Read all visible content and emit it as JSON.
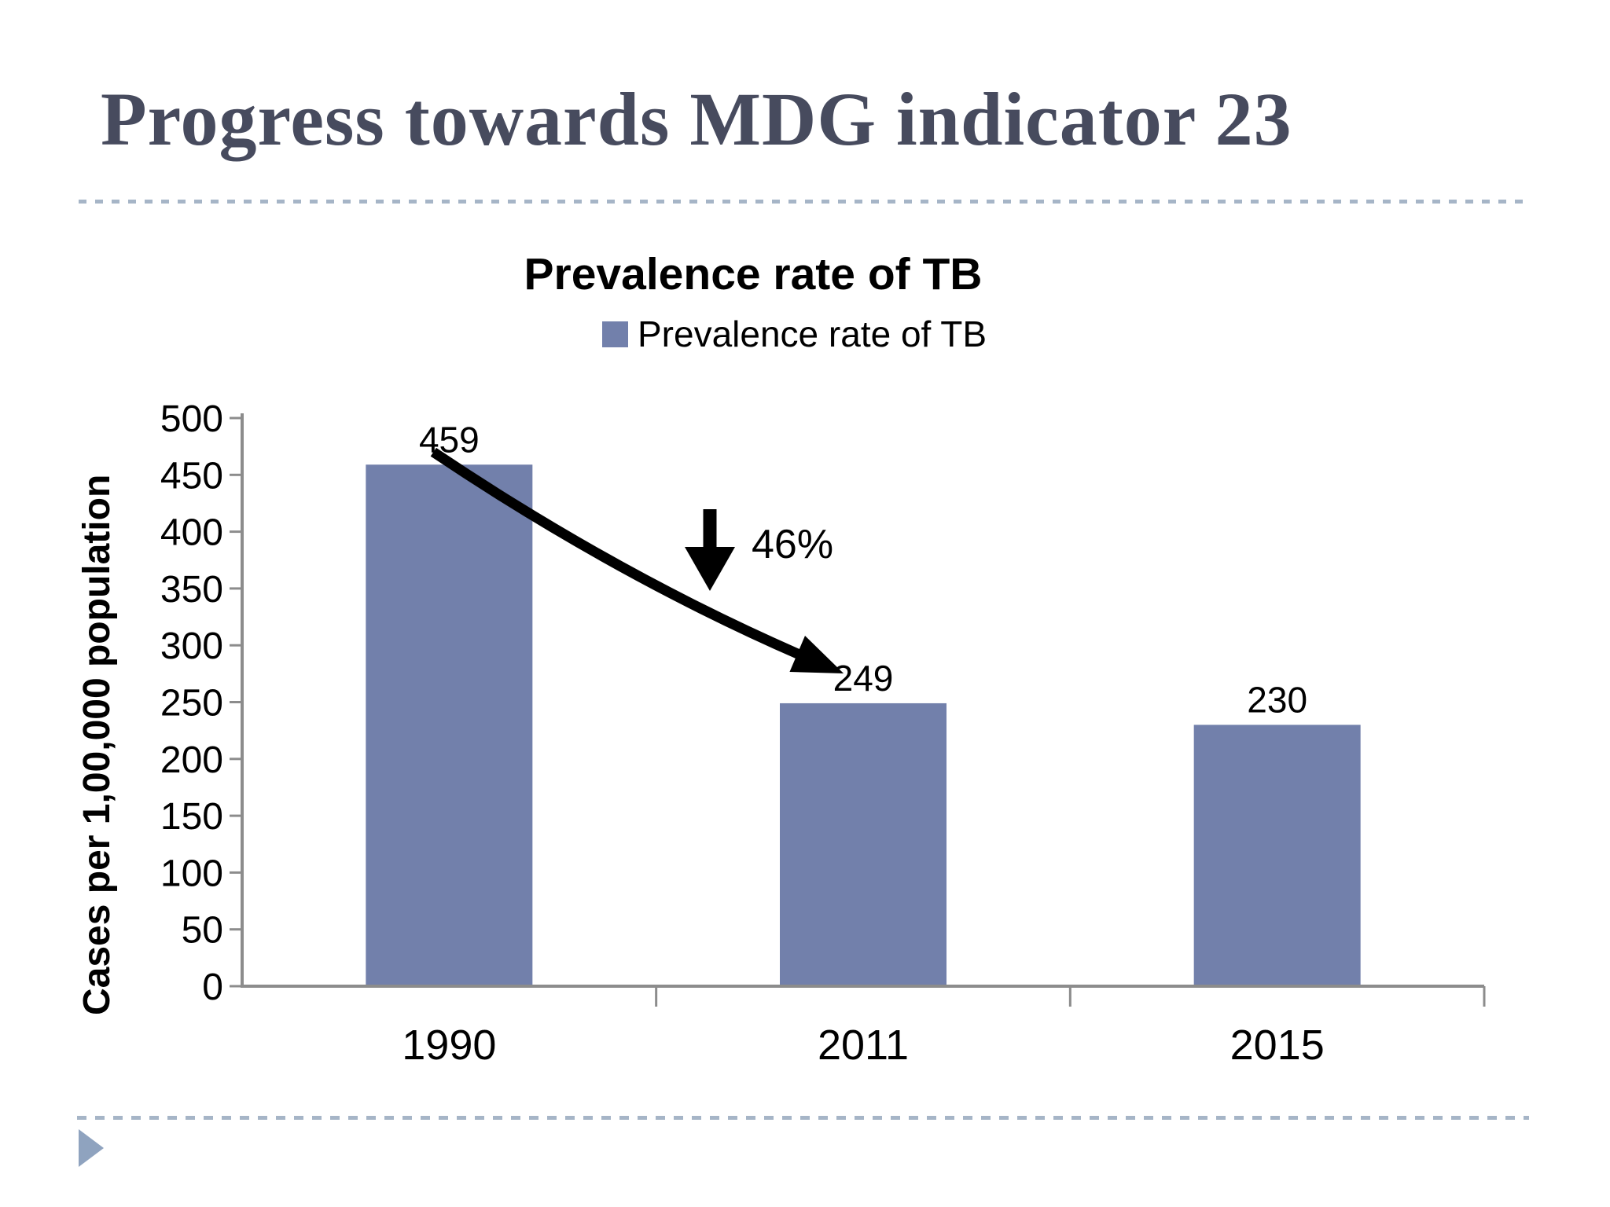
{
  "slide": {
    "title": "Progress towards MDG indicator 23",
    "footer_icon": "play-triangle-icon"
  },
  "chart": {
    "title": "Prevalence rate of TB",
    "legend_label": "Prevalence rate of TB",
    "ylabel": "Cases per 1,00,000 population"
  },
  "chart_data": {
    "type": "bar",
    "title": "Prevalence rate of TB",
    "categories": [
      "1990",
      "2011",
      "2015"
    ],
    "values": [
      459,
      249,
      230
    ],
    "data_labels": [
      "459",
      "249",
      "230"
    ],
    "xlabel": "",
    "ylabel": "Cases per 1,00,000 population",
    "ylim": [
      0,
      500
    ],
    "yticks": [
      0,
      50,
      100,
      150,
      200,
      250,
      300,
      350,
      400,
      450,
      500
    ],
    "legend": [
      "Prevalence rate of TB"
    ],
    "legend_position": "top",
    "grid": false,
    "bar_color": "#7280ab",
    "axis_color": "#8c8c8c",
    "annotations": [
      {
        "text": "46%",
        "icon": "down-arrow-icon",
        "meaning": "decrease from 459 (1990) to 249 (2011)"
      }
    ]
  }
}
